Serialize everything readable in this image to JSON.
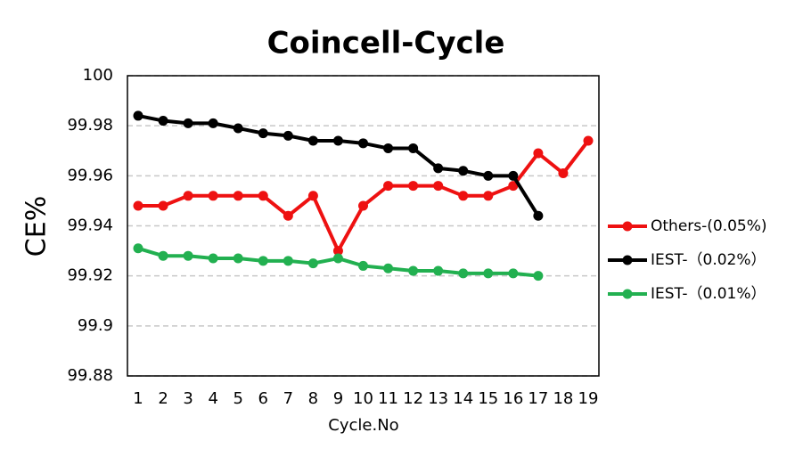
{
  "chart_data": {
    "type": "line",
    "title": "Coincell-Cycle",
    "x_label": "Cycle.No",
    "y_label": "CE%",
    "categories": [
      "1",
      "2",
      "3",
      "4",
      "5",
      "6",
      "7",
      "8",
      "9",
      "10",
      "11",
      "12",
      "13",
      "14",
      "15",
      "16",
      "17",
      "18",
      "19"
    ],
    "series": [
      {
        "name": "Others-(0.05%)",
        "color": "#ee1111",
        "values": [
          99.948,
          99.948,
          99.952,
          99.952,
          99.952,
          99.952,
          99.944,
          99.952,
          99.93,
          99.948,
          99.956,
          99.956,
          99.956,
          99.952,
          99.952,
          99.956,
          99.969,
          99.961,
          99.974
        ]
      },
      {
        "name": "IEST-（0.02%）",
        "color": "#000000",
        "values": [
          99.984,
          99.982,
          99.981,
          99.981,
          99.979,
          99.977,
          99.976,
          99.974,
          99.974,
          99.973,
          99.971,
          99.971,
          99.963,
          99.962,
          99.96,
          99.96,
          99.944,
          null,
          null
        ]
      },
      {
        "name": "IEST-（0.01%）",
        "color": "#22b050",
        "values": [
          99.931,
          99.928,
          99.928,
          99.927,
          99.927,
          99.926,
          99.926,
          99.925,
          99.927,
          99.924,
          99.923,
          99.922,
          99.922,
          99.921,
          99.921,
          99.921,
          99.92,
          null,
          null
        ]
      }
    ],
    "ylim": [
      99.88,
      100
    ],
    "yticks": [
      99.88,
      99.9,
      99.92,
      99.94,
      99.96,
      99.98,
      100
    ],
    "grid": true,
    "legend": "right"
  }
}
